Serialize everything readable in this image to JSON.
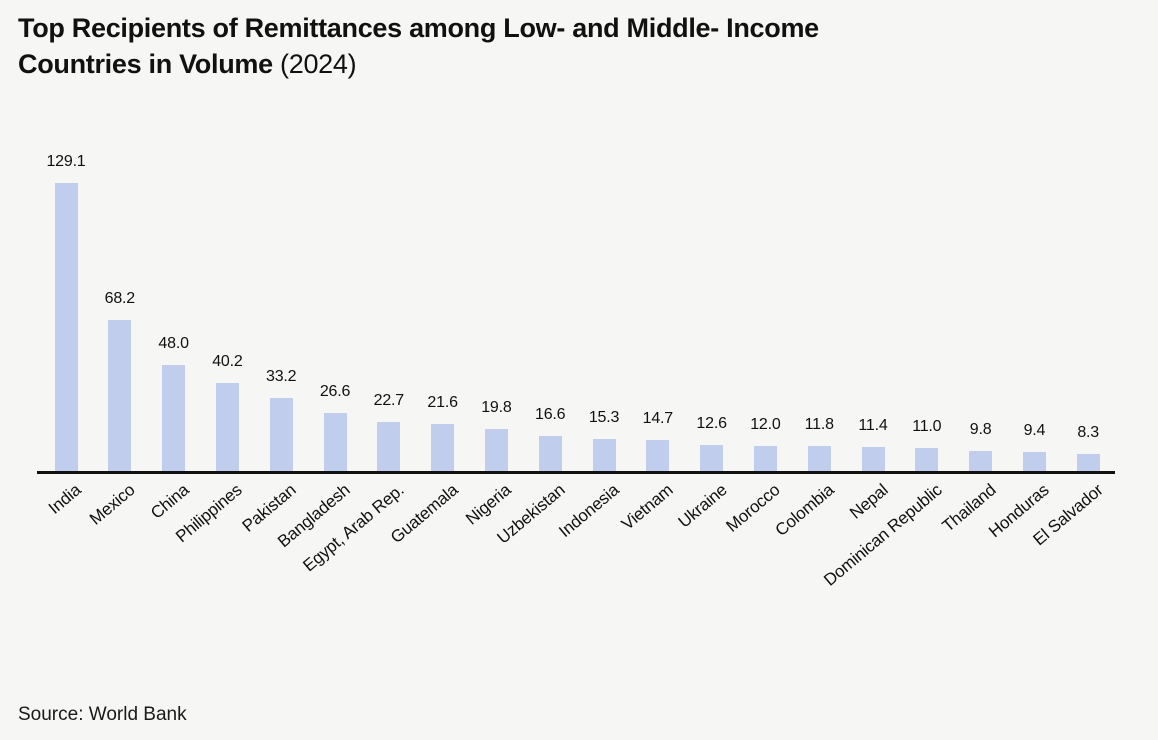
{
  "title": {
    "line1": "Top Recipients of Remittances among Low- and Middle- Income",
    "line2_bold": "Countries in Volume",
    "line2_year": "(2024)"
  },
  "source": "Source: World Bank",
  "colors": {
    "background": "#f6f6f4",
    "bar": "#c1cdec",
    "axis": "#111111",
    "text": "#111111"
  },
  "chart_data": {
    "type": "bar",
    "title": "Top Recipients of Remittances among Low- and Middle- Income Countries in Volume (2024)",
    "categories": [
      "India",
      "Mexico",
      "China",
      "Philippines",
      "Pakistan",
      "Bangladesh",
      "Egypt, Arab Rep.",
      "Guatemala",
      "Nigeria",
      "Uzbekistan",
      "Indonesia",
      "Vietnam",
      "Ukraine",
      "Morocco",
      "Colombia",
      "Nepal",
      "Dominican Republic",
      "Thailand",
      "Honduras",
      "El Salvador"
    ],
    "values": [
      129.1,
      68.2,
      48.0,
      40.2,
      33.2,
      26.6,
      22.7,
      21.6,
      19.8,
      16.6,
      15.3,
      14.7,
      12.6,
      12.0,
      11.8,
      11.4,
      11.0,
      9.8,
      9.4,
      8.3
    ],
    "xlabel": "",
    "ylabel": "",
    "ylim": [
      0,
      140
    ],
    "grid": false,
    "legend": false,
    "value_labels": true,
    "x_tick_rotation": -40,
    "source": "Source: World Bank"
  }
}
